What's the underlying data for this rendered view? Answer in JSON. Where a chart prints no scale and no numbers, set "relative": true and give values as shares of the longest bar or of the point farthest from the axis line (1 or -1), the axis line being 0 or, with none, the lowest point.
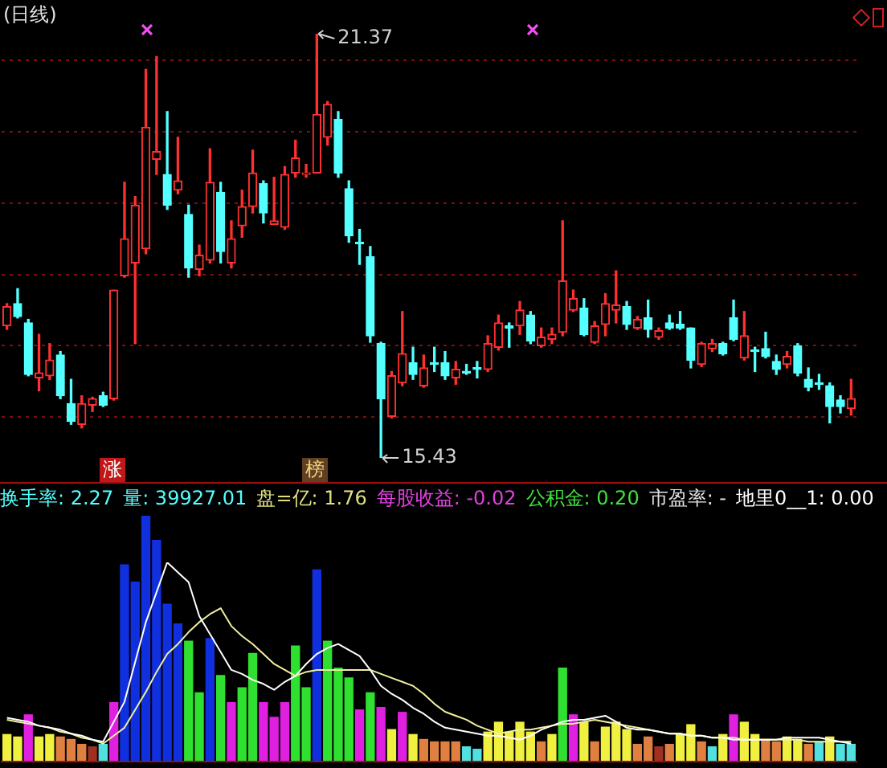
{
  "chart_data": [
    {
      "type": "candlestick",
      "title": "(日线)",
      "categories": [
        null,
        null,
        null,
        null,
        null,
        null,
        null,
        null,
        null,
        null,
        null,
        null,
        null,
        null,
        null,
        null,
        null,
        null,
        null,
        null,
        null,
        null,
        null,
        null,
        null,
        null,
        null,
        null,
        null,
        null,
        null,
        null,
        null,
        null,
        null,
        null,
        null,
        null,
        null,
        null,
        null,
        null,
        null,
        null,
        null,
        null,
        null,
        null,
        null,
        null,
        null,
        null,
        null,
        null,
        null,
        null,
        null,
        null,
        null,
        null,
        null,
        null,
        null,
        null,
        null,
        null,
        null,
        null,
        null,
        null,
        null,
        null,
        null,
        null,
        null,
        null,
        null,
        null,
        null,
        null
      ],
      "ohlc": [
        [
          17.28,
          17.59,
          17.23,
          17.55
        ],
        [
          17.59,
          17.8,
          17.39,
          17.41
        ],
        [
          17.32,
          17.37,
          16.58,
          16.6
        ],
        [
          16.55,
          17.16,
          16.37,
          16.62
        ],
        [
          16.58,
          17.03,
          16.53,
          16.8
        ],
        [
          16.87,
          16.92,
          16.26,
          16.3
        ],
        [
          16.19,
          16.53,
          15.9,
          15.94
        ],
        [
          15.9,
          16.3,
          15.85,
          16.19
        ],
        [
          16.17,
          16.28,
          16.08,
          16.26
        ],
        [
          16.3,
          16.35,
          16.15,
          16.17
        ],
        [
          16.26,
          17.78,
          16.24,
          17.78
        ],
        [
          17.98,
          19.29,
          17.96,
          18.5
        ],
        [
          18.16,
          19.09,
          17.03,
          18.97
        ],
        [
          18.36,
          20.87,
          18.29,
          20.06
        ],
        [
          19.61,
          21.05,
          19.4,
          19.72
        ],
        [
          19.4,
          20.28,
          18.91,
          18.97
        ],
        [
          19.18,
          19.92,
          19.13,
          19.31
        ],
        [
          18.84,
          18.97,
          17.96,
          18.09
        ],
        [
          18.07,
          18.41,
          17.98,
          18.27
        ],
        [
          18.2,
          19.76,
          18.16,
          19.29
        ],
        [
          19.15,
          19.29,
          18.16,
          18.32
        ],
        [
          18.16,
          18.75,
          18.09,
          18.5
        ],
        [
          18.68,
          19.18,
          18.52,
          18.95
        ],
        [
          18.95,
          19.74,
          18.86,
          19.42
        ],
        [
          19.27,
          19.31,
          18.72,
          18.86
        ],
        [
          18.7,
          19.36,
          18.7,
          18.75
        ],
        [
          18.66,
          19.51,
          18.63,
          19.4
        ],
        [
          19.42,
          19.88,
          19.36,
          19.63
        ],
        [
          19.4,
          19.54,
          19.36,
          19.42
        ],
        [
          19.42,
          21.37,
          19.42,
          20.24
        ],
        [
          19.92,
          20.42,
          19.81,
          20.38
        ],
        [
          20.17,
          20.28,
          19.36,
          19.42
        ],
        [
          19.2,
          19.31,
          18.45,
          18.54
        ],
        [
          18.45,
          18.63,
          18.14,
          18.43
        ],
        [
          18.25,
          18.39,
          17.05,
          17.14
        ],
        [
          17.03,
          17.05,
          15.43,
          16.26
        ],
        [
          16.01,
          16.64,
          15.99,
          16.58
        ],
        [
          16.48,
          17.48,
          16.44,
          16.89
        ],
        [
          16.76,
          16.98,
          16.53,
          16.6
        ],
        [
          16.44,
          16.87,
          16.42,
          16.69
        ],
        [
          16.76,
          16.98,
          16.64,
          16.74
        ],
        [
          16.76,
          16.92,
          16.53,
          16.58
        ],
        [
          16.55,
          16.78,
          16.46,
          16.67
        ],
        [
          16.64,
          16.74,
          16.6,
          16.62
        ],
        [
          16.69,
          16.78,
          16.55,
          16.67
        ],
        [
          16.67,
          17.14,
          16.64,
          17.03
        ],
        [
          16.98,
          17.43,
          16.94,
          17.32
        ],
        [
          17.28,
          17.32,
          16.98,
          17.25
        ],
        [
          17.28,
          17.62,
          17.16,
          17.5
        ],
        [
          17.43,
          17.48,
          17.03,
          17.07
        ],
        [
          17.0,
          17.25,
          16.98,
          17.12
        ],
        [
          17.09,
          17.25,
          17.03,
          17.16
        ],
        [
          17.19,
          18.75,
          17.14,
          17.91
        ],
        [
          17.5,
          17.78,
          17.48,
          17.66
        ],
        [
          17.53,
          17.66,
          17.14,
          17.16
        ],
        [
          17.05,
          17.34,
          17.03,
          17.28
        ],
        [
          17.3,
          17.73,
          17.14,
          17.59
        ],
        [
          17.5,
          18.05,
          17.32,
          17.57
        ],
        [
          17.55,
          17.62,
          17.23,
          17.3
        ],
        [
          17.25,
          17.41,
          17.23,
          17.37
        ],
        [
          17.39,
          17.64,
          17.12,
          17.23
        ],
        [
          17.12,
          17.25,
          17.09,
          17.21
        ],
        [
          17.32,
          17.43,
          17.23,
          17.25
        ],
        [
          17.3,
          17.48,
          17.23,
          17.25
        ],
        [
          17.25,
          17.25,
          16.69,
          16.8
        ],
        [
          16.74,
          17.05,
          16.71,
          17.03
        ],
        [
          16.96,
          17.09,
          16.92,
          17.03
        ],
        [
          17.03,
          17.05,
          16.87,
          16.89
        ],
        [
          17.39,
          17.64,
          17.07,
          17.09
        ],
        [
          16.83,
          17.48,
          16.8,
          17.14
        ],
        [
          16.94,
          16.98,
          16.64,
          16.92
        ],
        [
          16.96,
          17.19,
          16.83,
          16.85
        ],
        [
          16.78,
          16.87,
          16.6,
          16.67
        ],
        [
          16.74,
          16.92,
          16.69,
          16.85
        ],
        [
          17.0,
          17.03,
          16.58,
          16.62
        ],
        [
          16.53,
          16.69,
          16.37,
          16.42
        ],
        [
          16.48,
          16.6,
          16.39,
          16.46
        ],
        [
          16.44,
          16.48,
          15.92,
          16.15
        ],
        [
          16.24,
          16.3,
          16.06,
          16.15
        ],
        [
          16.12,
          16.53,
          16.03,
          16.26
        ]
      ],
      "yticks": [
        {
          "value": 16,
          "label": null
        },
        {
          "value": 17,
          "label": null
        },
        {
          "value": 18,
          "label": null
        },
        {
          "value": 19,
          "label": null
        },
        {
          "value": 20,
          "label": null
        },
        {
          "value": 21,
          "label": null
        }
      ],
      "grid": "y",
      "tick_labels": false,
      "annotations": [
        "21.37",
        "15.43",
        "涨",
        "榜",
        "换手率: 2.27",
        "量: 39927.01",
        "盘=亿: 1.76",
        "每股收益: -0.02",
        "公积金: 0.20",
        "市盈率: -",
        "地里0__1: 0.00"
      ]
    },
    {
      "type": "bar",
      "relative": true,
      "tick_labels": false,
      "categories": [
        null,
        null,
        null,
        null,
        null,
        null,
        null,
        null,
        null,
        null,
        null,
        null,
        null,
        null,
        null,
        null,
        null,
        null,
        null,
        null,
        null,
        null,
        null,
        null,
        null,
        null,
        null,
        null,
        null,
        null,
        null,
        null,
        null,
        null,
        null,
        null,
        null,
        null,
        null,
        null,
        null,
        null,
        null,
        null,
        null,
        null,
        null,
        null,
        null,
        null,
        null,
        null,
        null,
        null,
        null,
        null,
        null,
        null,
        null,
        null,
        null,
        null,
        null,
        null,
        null,
        null,
        null,
        null,
        null,
        null,
        null,
        null,
        null,
        null,
        null,
        null,
        null,
        null,
        null,
        null
      ],
      "series": [
        {
          "type": "bar",
          "values": [
            0.11,
            0.1,
            0.19,
            0.1,
            0.11,
            0.1,
            0.09,
            0.07,
            0.06,
            0.07,
            0.24,
            0.8,
            0.73,
            1,
            0.9,
            0.64,
            0.56,
            0.49,
            0.28,
            0.5,
            0.35,
            0.24,
            0.3,
            0.44,
            0.24,
            0.18,
            0.24,
            0.47,
            0.3,
            0.78,
            0.49,
            0.38,
            0.34,
            0.21,
            0.28,
            0.22,
            0.13,
            0.2,
            0.11,
            0.09,
            0.08,
            0.08,
            0.08,
            0.06,
            0.05,
            0.12,
            0.16,
            0.12,
            0.16,
            0.12,
            0.08,
            0.11,
            0.38,
            0.19,
            0.16,
            0.08,
            0.14,
            0.16,
            0.13,
            0.07,
            0.1,
            0.06,
            0.07,
            0.11,
            0.15,
            0.08,
            0.06,
            0.11,
            0.19,
            0.16,
            0.11,
            0.09,
            0.08,
            0.1,
            0.09,
            0.07,
            0.08,
            0.1,
            0.07,
            0.07
          ],
          "colors": [
            "#f0f040",
            "#f0f040",
            "#e020e0",
            "#f0f040",
            "#f0f040",
            "#e08040",
            "#e08040",
            "#e08040",
            "#a03020",
            "#50e0e0",
            "#e020e0",
            "#1030e0",
            "#1030e0",
            "#1030e0",
            "#1030e0",
            "#1030e0",
            "#1030e0",
            "#30e030",
            "#30e030",
            "#1030e0",
            "#30e030",
            "#e020e0",
            "#30e030",
            "#30e030",
            "#e020e0",
            "#e020e0",
            "#e020e0",
            "#30e030",
            "#30e030",
            "#1030e0",
            "#30e030",
            "#30e030",
            "#30e030",
            "#e020e0",
            "#30e030",
            "#e020e0",
            "#f0f040",
            "#e020e0",
            "#f0f040",
            "#e08040",
            "#e08040",
            "#e08040",
            "#e08040",
            "#50e0e0",
            "#50e0e0",
            "#f0f040",
            "#f0f040",
            "#f0f040",
            "#f0f040",
            "#f0f040",
            "#e08040",
            "#f0f040",
            "#30e030",
            "#e020e0",
            "#f0f040",
            "#e08040",
            "#f0f040",
            "#f0f040",
            "#f0f040",
            "#e08040",
            "#e08040",
            "#a03020",
            "#e08040",
            "#f0f040",
            "#f0f040",
            "#e08040",
            "#50e0e0",
            "#f0f040",
            "#e020e0",
            "#f0f040",
            "#f0f040",
            "#e08040",
            "#e08040",
            "#f0f040",
            "#f0f040",
            "#e08040",
            "#50e0e0",
            "#f0f040",
            "#50e0e0",
            "#50e0e0"
          ]
        }
      ]
    },
    {
      "type": "line",
      "relative": true,
      "tick_labels": false,
      "categories": [
        null,
        null,
        null,
        null,
        null,
        null,
        null,
        null,
        null,
        null,
        null,
        null,
        null,
        null,
        null,
        null,
        null,
        null,
        null,
        null,
        null,
        null,
        null,
        null,
        null,
        null,
        null,
        null,
        null,
        null,
        null,
        null,
        null,
        null,
        null,
        null,
        null,
        null,
        null,
        null,
        null,
        null,
        null,
        null,
        null,
        null,
        null,
        null,
        null,
        null,
        null,
        null,
        null,
        null,
        null,
        null,
        null,
        null,
        null,
        null,
        null,
        null,
        null,
        null,
        null,
        null,
        null,
        null,
        null,
        null,
        null,
        null,
        null,
        null,
        null,
        null,
        null,
        null,
        null,
        null
      ],
      "series": [
        {
          "color": "#ffffff",
          "values": [
            0.22,
            0.21,
            0.2,
            0.18,
            0.17,
            0.16,
            0.14,
            0.13,
            0.11,
            0.1,
            0.2,
            0.3,
            0.5,
            0.7,
            0.85,
            1,
            0.95,
            0.9,
            0.73,
            0.64,
            0.55,
            0.46,
            0.44,
            0.41,
            0.39,
            0.36,
            0.4,
            0.43,
            0.49,
            0.54,
            0.57,
            0.59,
            0.56,
            0.53,
            0.46,
            0.38,
            0.34,
            0.31,
            0.27,
            0.24,
            0.2,
            0.17,
            0.16,
            0.15,
            0.14,
            0.13,
            0.13,
            0.12,
            0.11,
            0.13,
            0.16,
            0.18,
            0.2,
            0.21,
            0.21,
            0.22,
            0.23,
            0.2,
            0.17,
            0.16,
            0.16,
            0.15,
            0.14,
            0.14,
            0.13,
            0.13,
            0.12,
            0.12,
            0.11,
            0.11,
            0.11,
            0.11,
            0.11,
            0.12,
            0.12,
            0.12,
            0.12,
            0.11,
            0.1,
            0.09
          ]
        },
        {
          "color": "#f0f0a0",
          "values": [
            0.21,
            0.2,
            0.19,
            0.18,
            0.17,
            0.15,
            0.14,
            0.12,
            0.11,
            0.09,
            0.13,
            0.17,
            0.26,
            0.35,
            0.45,
            0.54,
            0.59,
            0.65,
            0.7,
            0.74,
            0.77,
            0.68,
            0.63,
            0.59,
            0.54,
            0.49,
            0.46,
            0.43,
            0.45,
            0.46,
            0.46,
            0.46,
            0.46,
            0.46,
            0.46,
            0.44,
            0.42,
            0.4,
            0.38,
            0.34,
            0.29,
            0.25,
            0.23,
            0.21,
            0.18,
            0.16,
            0.14,
            0.15,
            0.16,
            0.16,
            0.17,
            0.18,
            0.19,
            0.19,
            0.2,
            0.21,
            0.2,
            0.19,
            0.18,
            0.17,
            0.16,
            0.15,
            0.14,
            0.14,
            0.13,
            0.13,
            0.12,
            0.12,
            0.12,
            0.11,
            0.11,
            0.11,
            0.11,
            0.11,
            0.11,
            0.1,
            0.1,
            0.1,
            0.1,
            0.1
          ]
        }
      ]
    }
  ]
}
